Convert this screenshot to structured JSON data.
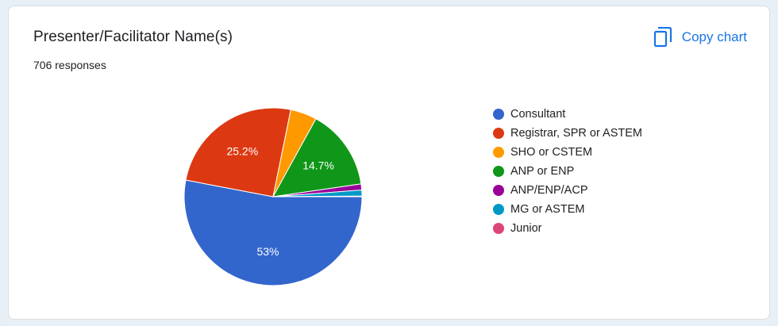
{
  "header": {
    "title": "Presenter/Facilitator Name(s)",
    "responses": "706 responses",
    "copy_label": "Copy chart"
  },
  "chart_data": {
    "type": "pie",
    "title": "Presenter/Facilitator Name(s)",
    "total_responses": 706,
    "legend_position": "right",
    "slices": [
      {
        "label": "Consultant",
        "value": 53.0,
        "display": "53%",
        "color": "#3366cc"
      },
      {
        "label": "Registrar, SPR or ASTEM",
        "value": 25.2,
        "display": "25.2%",
        "color": "#dc3912"
      },
      {
        "label": "SHO or CSTEM",
        "value": 4.8,
        "display": "",
        "color": "#ff9900"
      },
      {
        "label": "ANP or ENP",
        "value": 14.7,
        "display": "14.7%",
        "color": "#109618"
      },
      {
        "label": "ANP/ENP/ACP",
        "value": 1.1,
        "display": "",
        "color": "#990099"
      },
      {
        "label": "MG or ASTEM",
        "value": 1.1,
        "display": "",
        "color": "#0099c6"
      },
      {
        "label": "Junior",
        "value": 0.1,
        "display": "",
        "color": "#dd4477"
      }
    ]
  }
}
